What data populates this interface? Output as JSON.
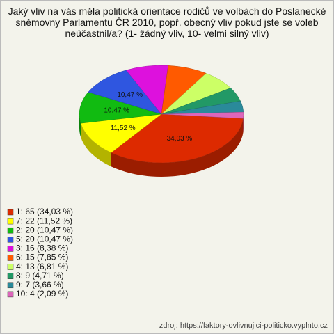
{
  "chart_data": {
    "type": "pie3d",
    "title": "Jaký vliv na vás měla politická orientace rodičů ve volbách do Poslanecké sněmovny Parlamentu ČR 2010, popř. obecný vliv pokud jste se voleb neúčastnil/a? (1- žádný vliv, 10- velmi silný vliv)",
    "labels": [
      "1: 65 (34,03 %)",
      "7: 22 (11,52 %)",
      "2: 20 (10,47 %)",
      "5: 20 (10,47 %)",
      "3: 16 (8,38 %)",
      "6: 15 (7,85 %)",
      "4: 13 (6,81 %)",
      "8: 9 (4,71 %)",
      "9: 7 (3,66 %)",
      "10: 4 (2,09 %)"
    ],
    "values": [
      34.03,
      11.52,
      10.47,
      10.47,
      8.38,
      7.85,
      6.81,
      4.71,
      3.66,
      2.09
    ],
    "value_labels": [
      "34,03 %",
      "11,52 %",
      "10,47 %",
      "10,47 %",
      null,
      null,
      null,
      null,
      null,
      null
    ],
    "colors": [
      "#dd2a00",
      "#ffff00",
      "#11bb11",
      "#2f56e0",
      "#dd11dd",
      "#ff5a00",
      "#ccff66",
      "#229966",
      "#2a8a9a",
      "#dd66bb"
    ],
    "source": "zdroj: https://faktory-ovlivnujici-politicko.vyplnto.cz"
  }
}
